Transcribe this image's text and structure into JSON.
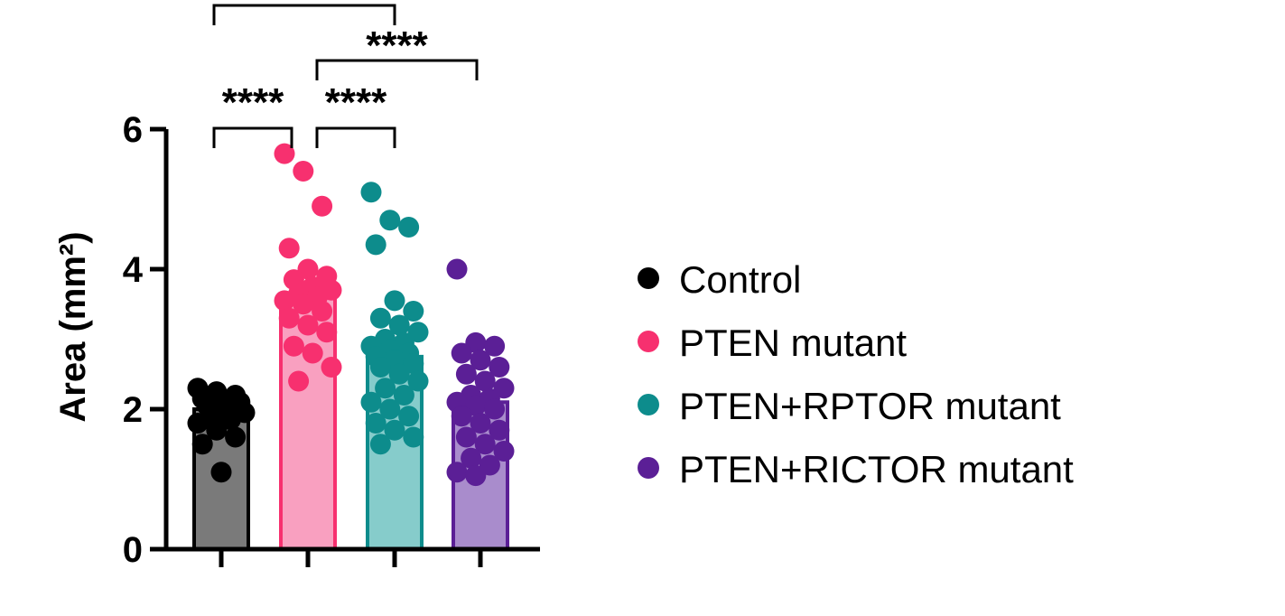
{
  "chart_data": {
    "type": "bar",
    "xlabel": "",
    "ylabel": "Area (mm²)",
    "ylim": [
      0,
      6
    ],
    "yticks": [
      0,
      2,
      4,
      6
    ],
    "grid": false,
    "legend_position": "right",
    "series": [
      {
        "name": "Control",
        "mean": 2.0,
        "bar_color": "#7a7a7a",
        "point_color": "#000000",
        "points": [
          2.3,
          2.25,
          2.2,
          2.15,
          2.12,
          2.1,
          2.05,
          2.0,
          1.95,
          1.9,
          1.85,
          1.8,
          1.7,
          1.6,
          1.5,
          1.1
        ]
      },
      {
        "name": "PTEN mutant",
        "mean": 3.6,
        "bar_color": "#f9a0c0",
        "point_color": "#f7306f",
        "points": [
          5.65,
          5.4,
          4.9,
          4.3,
          4.0,
          3.9,
          3.85,
          3.75,
          3.7,
          3.65,
          3.6,
          3.55,
          3.5,
          3.4,
          3.3,
          3.2,
          3.1,
          2.9,
          2.8,
          2.6,
          2.4
        ]
      },
      {
        "name": "PTEN+RPTOR mutant",
        "mean": 2.75,
        "bar_color": "#86cccb",
        "point_color": "#0d8c8c",
        "points": [
          5.1,
          4.7,
          4.6,
          4.35,
          3.55,
          3.4,
          3.3,
          3.2,
          3.1,
          3.0,
          2.95,
          2.9,
          2.85,
          2.8,
          2.75,
          2.7,
          2.65,
          2.6,
          2.5,
          2.4,
          2.3,
          2.2,
          2.1,
          2.0,
          1.9,
          1.8,
          1.7,
          1.6,
          1.5
        ]
      },
      {
        "name": "PTEN+RICTOR mutant",
        "mean": 2.1,
        "bar_color": "#a98ccc",
        "point_color": "#5b1f96",
        "points": [
          4.0,
          2.95,
          2.9,
          2.8,
          2.7,
          2.6,
          2.5,
          2.4,
          2.3,
          2.2,
          2.15,
          2.1,
          2.05,
          2.0,
          1.9,
          1.8,
          1.7,
          1.6,
          1.5,
          1.4,
          1.3,
          1.2,
          1.1,
          1.05
        ]
      }
    ],
    "significance": [
      {
        "from": 0,
        "to": 1,
        "label": "****"
      },
      {
        "from": 1,
        "to": 2,
        "label": "****"
      },
      {
        "from": 1,
        "to": 3,
        "label": "****"
      },
      {
        "from": 0,
        "to": 2,
        "label": ""
      }
    ]
  }
}
